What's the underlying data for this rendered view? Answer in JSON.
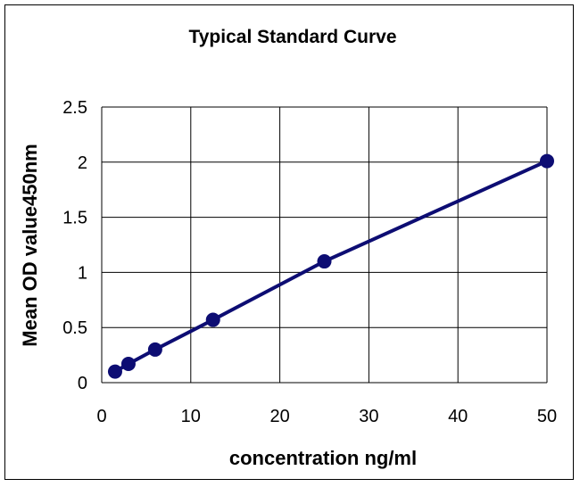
{
  "chart_data": {
    "type": "scatter",
    "title": "Typical Standard Curve",
    "xlabel": "concentration ng/ml",
    "ylabel": "Mean OD value450nm",
    "xlim": [
      0,
      50
    ],
    "ylim": [
      0,
      2.5
    ],
    "xticks": [
      "0",
      "10",
      "20",
      "30",
      "40",
      "50"
    ],
    "yticks": [
      "0",
      "0.5",
      "1",
      "1.5",
      "2",
      "2.5"
    ],
    "grid": true,
    "legend": "none",
    "series": [
      {
        "x": [
          1.5,
          3.0,
          6.0,
          12.5,
          25,
          50
        ],
        "y": [
          0.1,
          0.17,
          0.3,
          0.57,
          1.1,
          2.01
        ],
        "connected": true,
        "color": "#0d0d73"
      }
    ]
  }
}
